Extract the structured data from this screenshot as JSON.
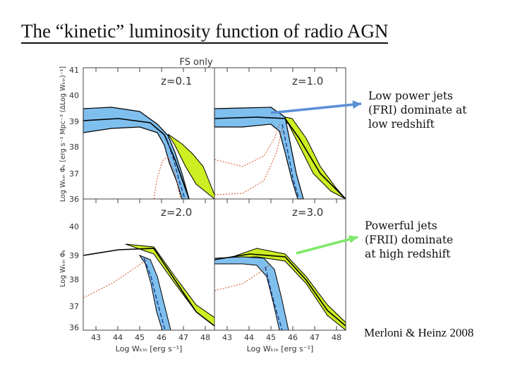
{
  "title": "The “kinetic” luminosity function of radio AGN",
  "figure": {
    "header": "FS only",
    "panels": [
      {
        "label": "z=0.1"
      },
      {
        "label": "z=1.0"
      },
      {
        "label": "z=2.0"
      },
      {
        "label": "z=3.0"
      }
    ],
    "ylabel_top": "Log Wₖᵢₙ Φₖ [erg s⁻¹ Mpc⁻³ (ΔLog Wₖᵢₙ)⁻¹]",
    "ylabel_bottom": "Log Wₖᵢₙ Φₖ",
    "xlabel": "Log Wₖᵢₙ [erg s⁻¹]",
    "yticks": [
      "41",
      "40",
      "39",
      "38",
      "37",
      "36"
    ],
    "xticks": [
      "43",
      "44",
      "45",
      "46",
      "47",
      "48"
    ],
    "colors": {
      "fri": "#7fbfee",
      "frii": "#ccee22",
      "total": "#000000",
      "dotted": "#d05020"
    }
  },
  "annotations": {
    "low": [
      "Low power jets",
      "(FRI) dominate at",
      "low redshift"
    ],
    "high": [
      "Powerful jets",
      "(FRII) dominate",
      "at high redshift"
    ],
    "low_arrow_color": "#5b8fd6",
    "high_arrow_color": "#7ee86a"
  },
  "credit": "Merloni & Heinz 2008"
}
